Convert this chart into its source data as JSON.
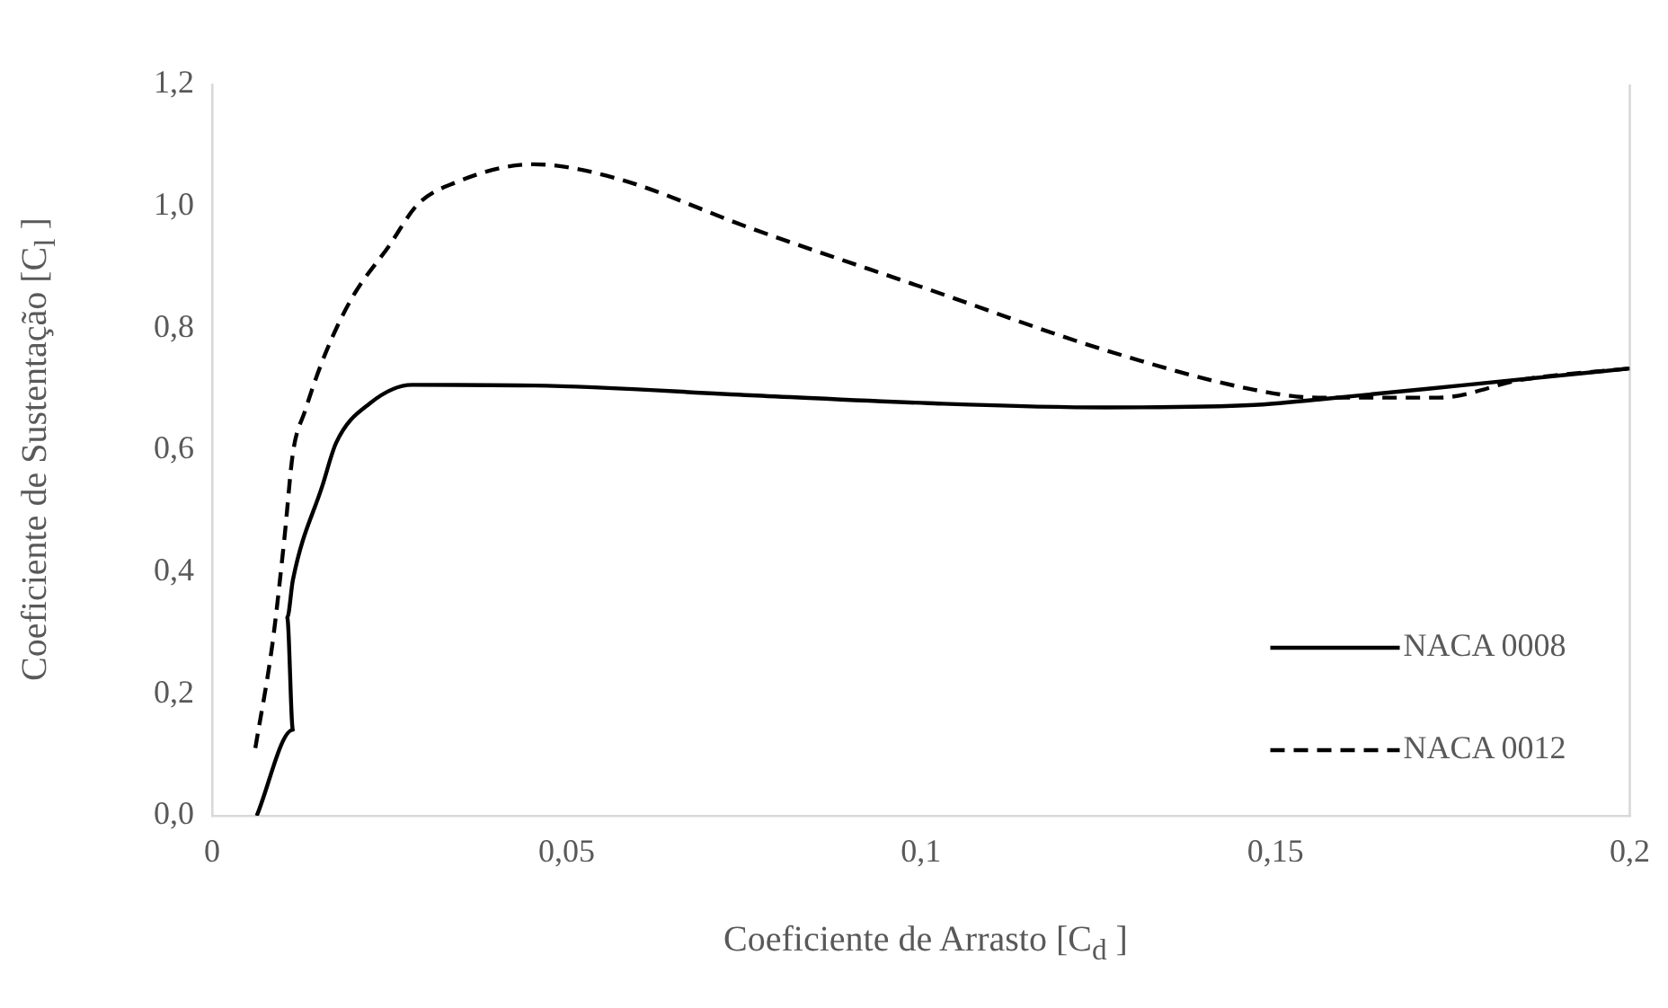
{
  "chart_data": {
    "type": "line",
    "xlabel": "Coeficiente de Arrasto [C$_{d}$ ]",
    "ylabel": "Coeficiente de Sustentação [C$_{l}$ ]",
    "xlim": [
      0,
      0.2
    ],
    "xticks": [
      0,
      {
        "value": 0.05,
        "label": "0,05"
      },
      {
        "value": 0.1,
        "label": "0,1"
      },
      {
        "value": 0.15,
        "label": "0,15"
      },
      {
        "value": 0.2,
        "label": "0,2"
      }
    ],
    "ylim": [
      0,
      1.2
    ],
    "yticks": [
      {
        "value": 0,
        "label": "0,0"
      },
      {
        "value": 0.2,
        "label": "0,2"
      },
      {
        "value": 0.4,
        "label": "0,4"
      },
      {
        "value": 0.6,
        "label": "0,6"
      },
      {
        "value": 0.8,
        "label": "0,8"
      },
      {
        "value": 1.0,
        "label": "1,0"
      },
      {
        "value": 1.2,
        "label": "1,2"
      }
    ],
    "grid": false,
    "legend": "bottom right",
    "marker": "none",
    "series": [
      {
        "name": "NACA 0008",
        "color": "#000000",
        "line_style": "solid",
        "x": [
          0.0063,
          0.0114,
          0.0106,
          0.0114,
          0.0156,
          0.0175,
          0.0223,
          0.0282,
          0.0454,
          0.076,
          0.101,
          0.126,
          0.147,
          0.156,
          0.177,
          0.2
        ],
        "values": [
          0,
          0.141,
          0.325,
          0.387,
          0.543,
          0.612,
          0.677,
          0.707,
          0.706,
          0.69,
          0.677,
          0.67,
          0.674,
          0.683,
          0.707,
          0.734
        ]
      },
      {
        "name": "NACA 0012",
        "color": "#000000",
        "line_style": "dashed",
        "x": [
          0.0061,
          0.0085,
          0.0102,
          0.0114,
          0.0131,
          0.016,
          0.0198,
          0.0249,
          0.029,
          0.0341,
          0.0454,
          0.0567,
          0.076,
          0.101,
          0.126,
          0.147,
          0.156,
          0.173,
          0.185,
          0.2
        ],
        "values": [
          0.111,
          0.281,
          0.455,
          0.595,
          0.664,
          0.759,
          0.851,
          0.934,
          1.003,
          1.038,
          1.069,
          1.047,
          0.964,
          0.864,
          0.764,
          0.699,
          0.686,
          0.686,
          0.716,
          0.734
        ]
      }
    ]
  }
}
